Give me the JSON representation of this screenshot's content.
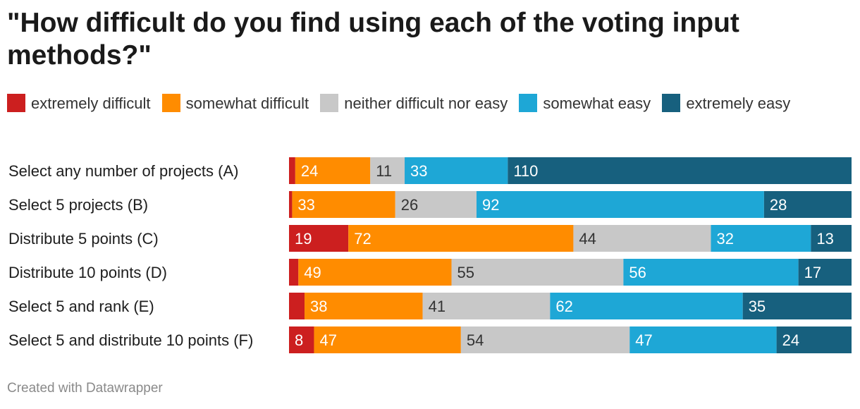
{
  "chart_data": {
    "type": "bar",
    "orientation": "horizontal",
    "stacked": true,
    "normalized": true,
    "title": "\"How difficult do you find using each of the voting input methods?\"",
    "categories": [
      "Select any number of projects (A)",
      "Select 5 projects (B)",
      "Distribute 5 points (C)",
      "Distribute 10 points (D)",
      "Select 5 and rank (E)",
      "Select 5 and distribute 10 points (F)"
    ],
    "series": [
      {
        "name": "extremely difficult",
        "color": "#cc1f1f",
        "text_color": "#ffffff",
        "values": [
          2,
          1,
          19,
          3,
          5,
          8
        ]
      },
      {
        "name": "somewhat difficult",
        "color": "#ff8c00",
        "text_color": "#ffffff",
        "values": [
          24,
          33,
          72,
          49,
          38,
          47
        ]
      },
      {
        "name": "neither difficult nor easy",
        "color": "#c8c8c8",
        "text_color": "#333333",
        "values": [
          11,
          26,
          44,
          55,
          41,
          54
        ]
      },
      {
        "name": "somewhat easy",
        "color": "#1ea7d6",
        "text_color": "#ffffff",
        "values": [
          33,
          92,
          32,
          56,
          62,
          47
        ]
      },
      {
        "name": "extremely easy",
        "color": "#17607e",
        "text_color": "#ffffff",
        "values": [
          110,
          28,
          13,
          17,
          35,
          24
        ]
      }
    ],
    "value_labels": [
      [
        "",
        "24",
        "11",
        "33",
        "110"
      ],
      [
        "",
        "33",
        "26",
        "92",
        "28"
      ],
      [
        "19",
        "72",
        "44",
        "32",
        "13"
      ],
      [
        "",
        "49",
        "55",
        "56",
        "17"
      ],
      [
        "",
        "38",
        "41",
        "62",
        "35"
      ],
      [
        "8",
        "47",
        "54",
        "47",
        "24"
      ]
    ],
    "legend_position": "top",
    "grid": false
  },
  "footer": "Created with Datawrapper"
}
